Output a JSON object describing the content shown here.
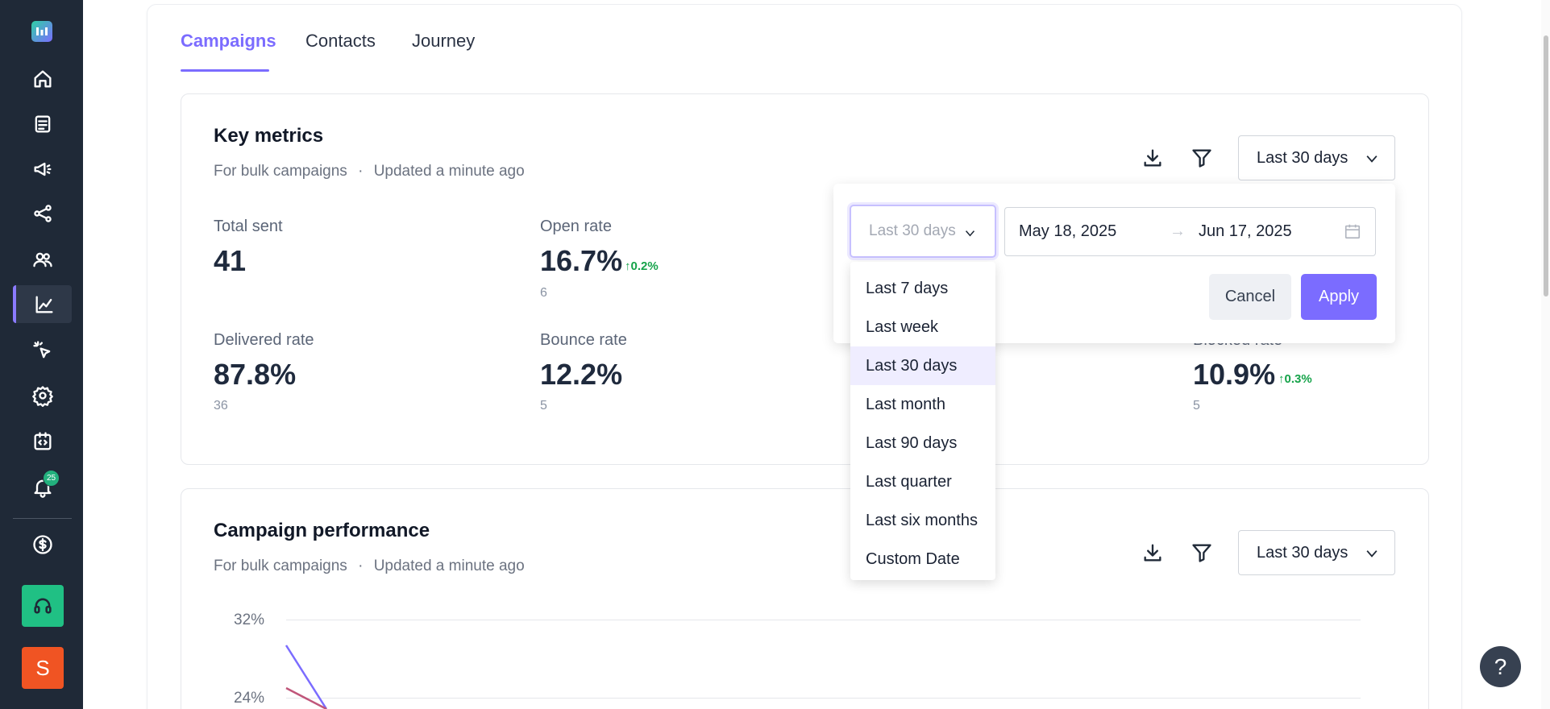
{
  "sidebar": {
    "items": [
      {
        "name": "home-icon"
      },
      {
        "name": "list-icon"
      },
      {
        "name": "megaphone-icon"
      },
      {
        "name": "share-nodes-icon"
      },
      {
        "name": "users-icon"
      },
      {
        "name": "chart-icon"
      },
      {
        "name": "pointer-click-icon"
      },
      {
        "name": "gear-icon"
      },
      {
        "name": "code-icon"
      },
      {
        "name": "bell-icon"
      },
      {
        "name": "dollar-icon"
      }
    ],
    "notification_count": "25",
    "avatar_initial": "S"
  },
  "tabs": [
    {
      "label": "Campaigns",
      "active": true
    },
    {
      "label": "Contacts",
      "active": false
    },
    {
      "label": "Journey",
      "active": false
    }
  ],
  "key_metrics": {
    "title": "Key metrics",
    "subtitle": "For bulk campaigns",
    "updated": "Updated a minute ago",
    "range_label": "Last 30 days",
    "metrics": [
      {
        "label": "Total sent",
        "value": "41",
        "count": "",
        "delta": ""
      },
      {
        "label": "Open rate",
        "value": "16.7%",
        "count": "6",
        "delta": "0.2%"
      },
      {
        "label": "Delivered rate",
        "value": "87.8%",
        "count": "36",
        "delta": ""
      },
      {
        "label": "Bounce rate",
        "value": "12.2%",
        "count": "5",
        "delta": ""
      },
      {
        "label": "Blocked rate",
        "value": "10.9%",
        "count": "5",
        "delta": "0.3%"
      }
    ]
  },
  "campaign_performance": {
    "title": "Campaign performance",
    "subtitle": "For bulk campaigns",
    "updated": "Updated a minute ago",
    "range_label": "Last 30 days",
    "y_ticks": [
      "32%",
      "24%"
    ]
  },
  "date_picker": {
    "preset_placeholder": "Last 30 days",
    "start_date": "May 18, 2025",
    "end_date": "Jun 17, 2025",
    "cancel_label": "Cancel",
    "apply_label": "Apply",
    "options": [
      "Last 7 days",
      "Last week",
      "Last 30 days",
      "Last month",
      "Last 90 days",
      "Last quarter",
      "Last six months",
      "Custom Date"
    ],
    "selected_option": "Last 30 days"
  },
  "help_label": "?",
  "colors": {
    "accent": "#7b6cff",
    "sidebar_bg": "#1f2937",
    "positive": "#16a34a",
    "support": "#20c084",
    "avatar": "#f05423"
  }
}
